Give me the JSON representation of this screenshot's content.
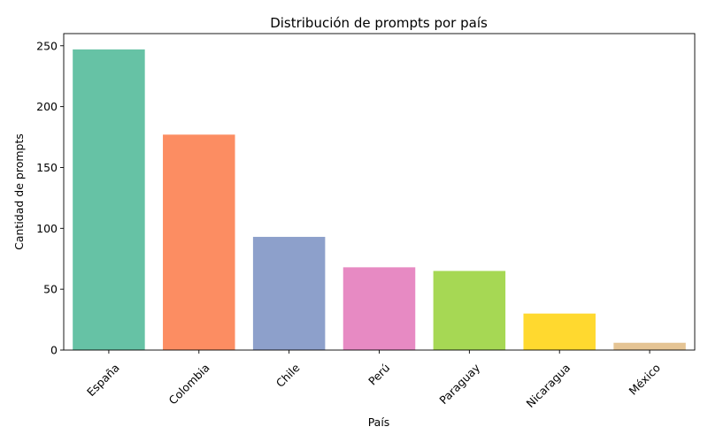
{
  "chart_data": {
    "type": "bar",
    "title": "Distribución de prompts por país",
    "xlabel": "País",
    "ylabel": "Cantidad de prompts",
    "categories": [
      "España",
      "Colombia",
      "Chile",
      "Perú",
      "Paraguay",
      "Nicaragua",
      "México"
    ],
    "values": [
      247,
      177,
      93,
      68,
      65,
      30,
      6
    ],
    "colors": [
      "#66c2a5",
      "#fc8d62",
      "#8da0cb",
      "#e78ac3",
      "#a6d854",
      "#ffd92f",
      "#e5c494"
    ],
    "ylim": [
      0,
      260
    ],
    "yticks": [
      0,
      50,
      100,
      150,
      200,
      250
    ],
    "grid": false,
    "legend": "none"
  }
}
